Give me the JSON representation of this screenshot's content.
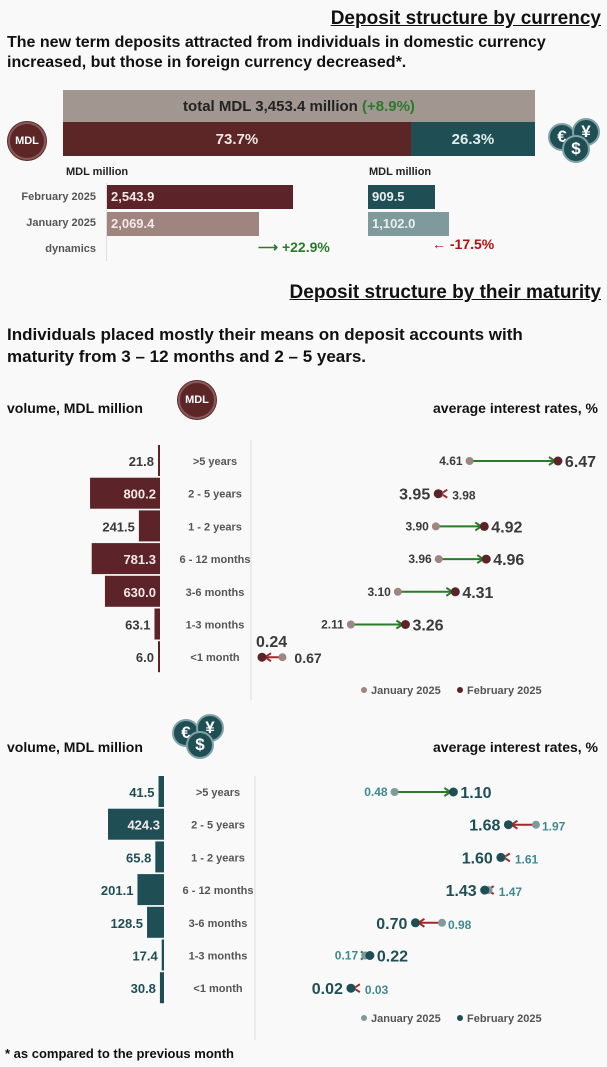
{
  "currency": {
    "title": "Deposit structure by currency",
    "subtitle": "The new term deposits attracted from individuals in domestic currency increased, but those in foreign currency decreased*.",
    "total_label": "total MDL 3,453.4 million",
    "total_change": "(+8.9%)",
    "mdl_share": "73.7%",
    "fx_share": "26.3%",
    "mdl_share_value": 73.7,
    "mdl_coin": "MDL",
    "fx_symbols": [
      "€",
      "¥",
      "$"
    ],
    "unit_left": "MDL million",
    "unit_right": "MDL million",
    "rows": [
      "February 2025",
      "January 2025",
      "dynamics"
    ],
    "mdl_values": [
      "2,543.9",
      "2,069.4"
    ],
    "mdl_nums": [
      2543.9,
      2069.4
    ],
    "fx_values": [
      "909.5",
      "1,102.0"
    ],
    "fx_nums": [
      909.5,
      1102.0
    ],
    "mdl_dynamics": "+22.9%",
    "fx_dynamics": "-17.5%"
  },
  "maturity": {
    "title": "Deposit structure by their maturity",
    "subtitle": "Individuals placed mostly their means on deposit accounts with maturity from 3 – 12 months and 2 – 5 years.",
    "volume_label": "volume, MDL million",
    "rates_label": "average interest rates, %",
    "legend": [
      "January 2025",
      "February 2025"
    ]
  },
  "chart_data": [
    {
      "type": "bar+dumbbell",
      "currency": "MDL",
      "categories": [
        ">5 years",
        "2 - 5 years",
        "1 - 2 years",
        "6 - 12 months",
        "3-6 months",
        "1-3 months",
        "<1 month"
      ],
      "volume": [
        21.8,
        800.2,
        241.5,
        781.3,
        630.0,
        63.1,
        6.0
      ],
      "volume_labels": [
        "21.8",
        "800.2",
        "241.5",
        "781.3",
        "630.0",
        "63.1",
        "6.0"
      ],
      "rate_jan": [
        4.61,
        3.98,
        3.9,
        3.96,
        3.1,
        2.11,
        0.67
      ],
      "rate_feb": [
        6.47,
        3.95,
        4.92,
        4.96,
        4.31,
        3.26,
        0.24
      ],
      "rate_jan_labels": [
        "4.61",
        "3.98",
        "3.90",
        "3.96",
        "3.10",
        "2.11",
        "0.67"
      ],
      "rate_feb_labels": [
        "6.47",
        "3.95",
        "4.92",
        "4.96",
        "4.31",
        "3.26",
        "0.24"
      ]
    },
    {
      "type": "bar+dumbbell",
      "currency": "foreign",
      "categories": [
        ">5 years",
        "2 - 5 years",
        "1 - 2 years",
        "6 - 12 months",
        "3-6 months",
        "1-3 months",
        "<1 month"
      ],
      "volume": [
        41.5,
        424.3,
        65.8,
        201.1,
        128.5,
        17.4,
        30.8
      ],
      "volume_labels": [
        "41.5",
        "424.3",
        "65.8",
        "201.1",
        "128.5",
        "17.4",
        "30.8"
      ],
      "rate_jan": [
        0.48,
        1.97,
        1.61,
        1.47,
        0.98,
        0.17,
        0.03
      ],
      "rate_feb": [
        1.1,
        1.68,
        1.6,
        1.43,
        0.7,
        0.22,
        0.02
      ],
      "rate_jan_labels": [
        "0.48",
        "1.97",
        "1.61",
        "1.47",
        "0.98",
        "0.17",
        "0.03"
      ],
      "rate_feb_labels": [
        "1.10",
        "1.68",
        "1.60",
        "1.43",
        "0.70",
        "0.22",
        "0.02"
      ]
    }
  ],
  "colors": {
    "mdl": "#5c2328",
    "mdl_light": "#a08480",
    "fx": "#1f4f55",
    "fx_light": "#7f9a9c",
    "up": "#2a7a2a",
    "down": "#a02a2a",
    "gray": "#a19790"
  },
  "footnote": "* as compared to the previous month"
}
